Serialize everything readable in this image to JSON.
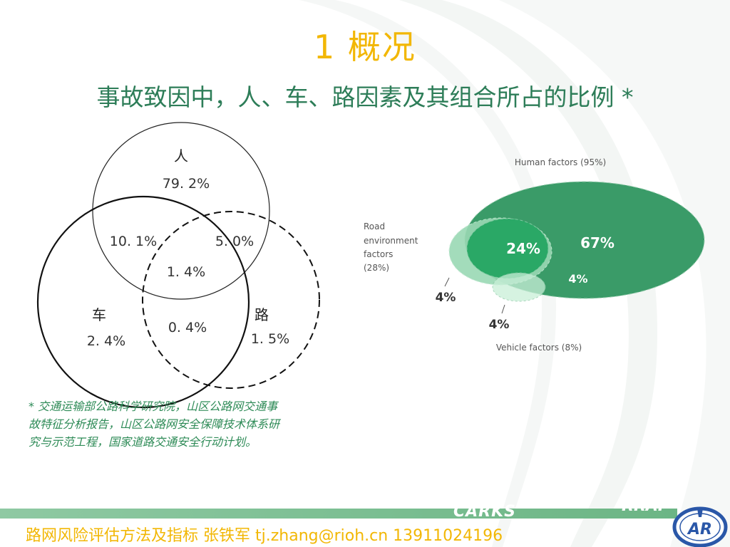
{
  "slide": {
    "title": "1  概况",
    "subtitle": "事故致因中，人、车、路因素及其组合所占的比例 *"
  },
  "venn_cn": {
    "human_label": "人",
    "human_value": "79. 2%",
    "vehicle_label": "车",
    "vehicle_value": "2. 4%",
    "road_label": "路",
    "road_value": "1. 5%",
    "human_vehicle_value": "10. 1%",
    "human_road_value": "5. 0%",
    "all_three_value": "1. 4%",
    "vehicle_road_value": "0. 4%"
  },
  "venn_en": {
    "human_label": "Human factors (95%)",
    "road_label_line1": "Road",
    "road_label_line2": "environment",
    "road_label_line3": "factors",
    "road_label_line4": "(28%)",
    "vehicle_label": "Vehicle factors (8%)",
    "human_only_value": "67%",
    "human_road_value": "24%",
    "human_vehicle_value": "4%",
    "road_only_value": "4%",
    "vehicle_only_value": "4%",
    "colors": {
      "human": "#3a9b68",
      "road": "#9ad9b4",
      "overlap": "#2aa866",
      "vehicle": "#c9efd8"
    }
  },
  "footnote": {
    "line1": "* 交通运输部公路科学研究院，山区公路网交通事",
    "line2": "故特征分析报告，山区公路网安全保障技术体系研",
    "line3": "究与示范工程，国家道路交通安全行动计划。"
  },
  "footer": {
    "text": "路网风险评估方法及指标 张铁军 tj.zhang@rioh.cn 13911024196",
    "brand_left": "CARKS",
    "brand_right": "RRAP",
    "logo_letters": "AR"
  }
}
